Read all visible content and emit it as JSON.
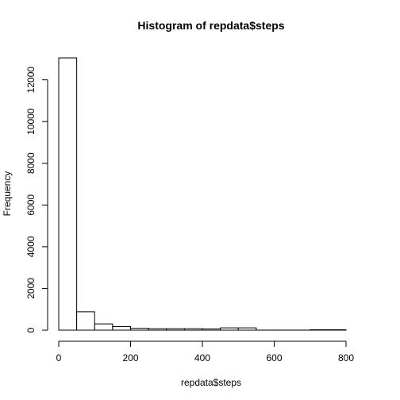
{
  "chart_data": {
    "type": "bar",
    "title": "Histogram of repdata$steps",
    "xlabel": "repdata$steps",
    "ylabel": "Frequency",
    "bin_edges": [
      0,
      50,
      100,
      150,
      200,
      250,
      300,
      350,
      400,
      450,
      500,
      550,
      600,
      650,
      700,
      750,
      800
    ],
    "values": [
      13050,
      880,
      300,
      170,
      90,
      70,
      70,
      70,
      60,
      110,
      110,
      3,
      3,
      3,
      20,
      20
    ],
    "xlim": [
      0,
      850
    ],
    "ylim": [
      0,
      13050
    ],
    "x_ticks": [
      0,
      200,
      400,
      600,
      800
    ],
    "y_ticks": [
      0,
      2000,
      4000,
      6000,
      8000,
      10000,
      12000
    ],
    "grid": false
  }
}
